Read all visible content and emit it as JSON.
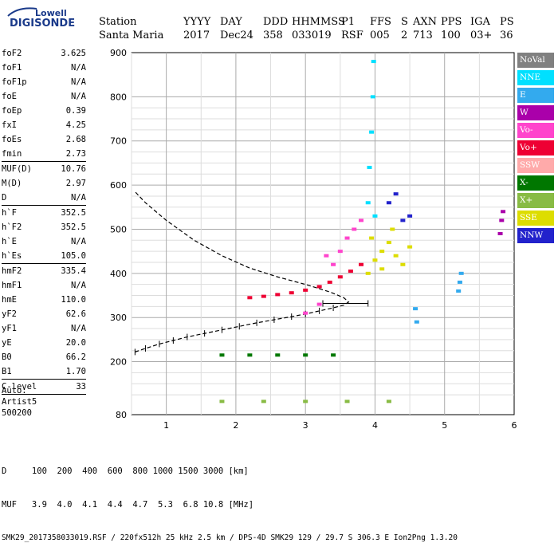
{
  "logo": {
    "line1": "Lowell",
    "line2": "DIGISONDE"
  },
  "header": {
    "labels": [
      "Station",
      "YYYY",
      "DAY",
      "DDD",
      "HHMMSS",
      "P1",
      "FFS",
      "S",
      "AXN",
      "PPS",
      "IGA",
      "PS"
    ],
    "values": [
      "Santa Maria",
      "2017",
      "Dec24",
      "358",
      "033019",
      "RSF",
      "005",
      "2",
      "713",
      "100",
      "03+",
      "36"
    ]
  },
  "params": [
    {
      "name": "foF2",
      "value": "3.625"
    },
    {
      "name": "foF1",
      "value": "N/A"
    },
    {
      "name": "foF1p",
      "value": "N/A"
    },
    {
      "name": "foE",
      "value": "N/A"
    },
    {
      "name": "foEp",
      "value": "0.39"
    },
    {
      "name": "fxI",
      "value": "4.25"
    },
    {
      "name": "foEs",
      "value": "2.68"
    },
    {
      "name": "fmin",
      "value": "2.73",
      "sep": true
    },
    {
      "name": "MUF(D)",
      "value": "10.76"
    },
    {
      "name": "M(D)",
      "value": "2.97"
    },
    {
      "name": "D",
      "value": "N/A",
      "sep": true
    },
    {
      "name": "h`F",
      "value": "352.5"
    },
    {
      "name": "h`F2",
      "value": "352.5"
    },
    {
      "name": "h`E",
      "value": "N/A"
    },
    {
      "name": "h`Es",
      "value": "105.0",
      "sep": true
    },
    {
      "name": "hmF2",
      "value": "335.4"
    },
    {
      "name": "hmF1",
      "value": "N/A"
    },
    {
      "name": "hmE",
      "value": "110.0"
    },
    {
      "name": "yF2",
      "value": "62.6"
    },
    {
      "name": "yF1",
      "value": "N/A"
    },
    {
      "name": "yE",
      "value": "20.0"
    },
    {
      "name": "B0",
      "value": "66.2"
    },
    {
      "name": "B1",
      "value": "1.70",
      "sep": true
    },
    {
      "name": "C-level",
      "value": "33",
      "sep": true
    }
  ],
  "auto": [
    "Auto:",
    "Artist5",
    "500200"
  ],
  "footer": {
    "d_row": "D     100  200  400  600  800 1000 1500 3000 [km]",
    "muf_row": "MUF   3.9  4.0  4.1  4.4  4.7  5.3  6.8 10.8 [MHz]",
    "info_row": "SMK29_2017358033019.RSF / 220fx512h 25 kHz 2.5 km / DPS-4D SMK29 129 / 29.7 S 306.3 E Ion2Png 1.3.20"
  },
  "legend": [
    {
      "label": "NoVal",
      "color": "#808080"
    },
    {
      "label": "NNE",
      "color": "#00e0ff"
    },
    {
      "label": "E",
      "color": "#33aaee"
    },
    {
      "label": "W",
      "color": "#aa00aa"
    },
    {
      "label": "Vo-",
      "color": "#ff44cc"
    },
    {
      "label": "Vo+",
      "color": "#ee0033"
    },
    {
      "label": "SSW",
      "color": "#ffaaaa"
    },
    {
      "label": "X-",
      "color": "#007700"
    },
    {
      "label": "X+",
      "color": "#88bb44"
    },
    {
      "label": "SSE",
      "color": "#dddd00"
    },
    {
      "label": "NNW",
      "color": "#2222cc"
    }
  ],
  "chart_data": {
    "type": "scatter",
    "xlim": [
      0.5,
      6.0
    ],
    "ylim": [
      80,
      900
    ],
    "x_ticks": [
      1,
      2,
      3,
      4,
      5,
      6
    ],
    "y_ticks": [
      80,
      200,
      300,
      400,
      500,
      600,
      700,
      800,
      900
    ],
    "grid": true,
    "legend_position": "right",
    "profile_curve": [
      [
        0.55,
        222
      ],
      [
        0.7,
        230
      ],
      [
        0.9,
        240
      ],
      [
        1.1,
        248
      ],
      [
        1.3,
        256
      ],
      [
        1.55,
        264
      ],
      [
        1.8,
        272
      ],
      [
        2.05,
        280
      ],
      [
        2.3,
        288
      ],
      [
        2.55,
        295
      ],
      [
        2.8,
        302
      ],
      [
        3.0,
        308
      ],
      [
        3.2,
        315
      ],
      [
        3.4,
        322
      ],
      [
        3.55,
        328
      ],
      [
        3.62,
        335
      ],
      [
        3.55,
        345
      ],
      [
        3.35,
        358
      ],
      [
        3.0,
        375
      ],
      [
        2.6,
        392
      ],
      [
        2.2,
        412
      ],
      [
        1.8,
        440
      ],
      [
        1.4,
        475
      ],
      [
        1.0,
        520
      ],
      [
        0.7,
        560
      ],
      [
        0.55,
        585
      ]
    ],
    "trace_clusters": [
      {
        "series": "Vo+",
        "points": [
          [
            2.2,
            345
          ],
          [
            2.4,
            348
          ],
          [
            2.6,
            352
          ],
          [
            2.8,
            356
          ],
          [
            3.0,
            362
          ],
          [
            3.2,
            370
          ],
          [
            3.35,
            380
          ],
          [
            3.5,
            392
          ],
          [
            3.65,
            405
          ],
          [
            3.8,
            420
          ]
        ]
      },
      {
        "series": "SSE",
        "points": [
          [
            3.9,
            400
          ],
          [
            4.0,
            430
          ],
          [
            4.1,
            450
          ],
          [
            4.2,
            470
          ],
          [
            4.3,
            440
          ],
          [
            4.4,
            420
          ],
          [
            4.5,
            460
          ],
          [
            4.1,
            410
          ],
          [
            3.95,
            480
          ],
          [
            4.25,
            500
          ]
        ]
      },
      {
        "series": "Vo-",
        "points": [
          [
            3.0,
            310
          ],
          [
            3.2,
            330
          ],
          [
            3.5,
            450
          ],
          [
            3.6,
            480
          ],
          [
            3.7,
            500
          ],
          [
            3.3,
            440
          ],
          [
            3.8,
            520
          ],
          [
            3.4,
            420
          ]
        ]
      },
      {
        "series": "NNE",
        "points": [
          [
            3.9,
            560
          ],
          [
            3.92,
            640
          ],
          [
            3.95,
            720
          ],
          [
            3.97,
            800
          ],
          [
            3.98,
            880
          ],
          [
            4.0,
            530
          ]
        ]
      },
      {
        "series": "E",
        "points": [
          [
            5.2,
            360
          ],
          [
            5.22,
            380
          ],
          [
            5.24,
            400
          ],
          [
            4.58,
            320
          ],
          [
            4.6,
            290
          ]
        ]
      },
      {
        "series": "W",
        "points": [
          [
            5.8,
            490
          ],
          [
            5.82,
            520
          ],
          [
            5.84,
            540
          ]
        ]
      },
      {
        "series": "X-",
        "points": [
          [
            1.8,
            215
          ],
          [
            2.2,
            215
          ],
          [
            2.6,
            215
          ],
          [
            3.0,
            215
          ],
          [
            3.4,
            215
          ]
        ]
      },
      {
        "series": "X+",
        "points": [
          [
            1.8,
            110
          ],
          [
            2.4,
            110
          ],
          [
            3.0,
            110
          ],
          [
            3.6,
            110
          ],
          [
            4.2,
            110
          ]
        ]
      },
      {
        "series": "NNW",
        "points": [
          [
            4.4,
            520
          ],
          [
            4.5,
            530
          ],
          [
            4.2,
            560
          ],
          [
            4.3,
            580
          ]
        ]
      }
    ],
    "error_bar": {
      "x_center": 3.55,
      "x_low": 3.25,
      "x_high": 3.9,
      "y": 332
    }
  }
}
